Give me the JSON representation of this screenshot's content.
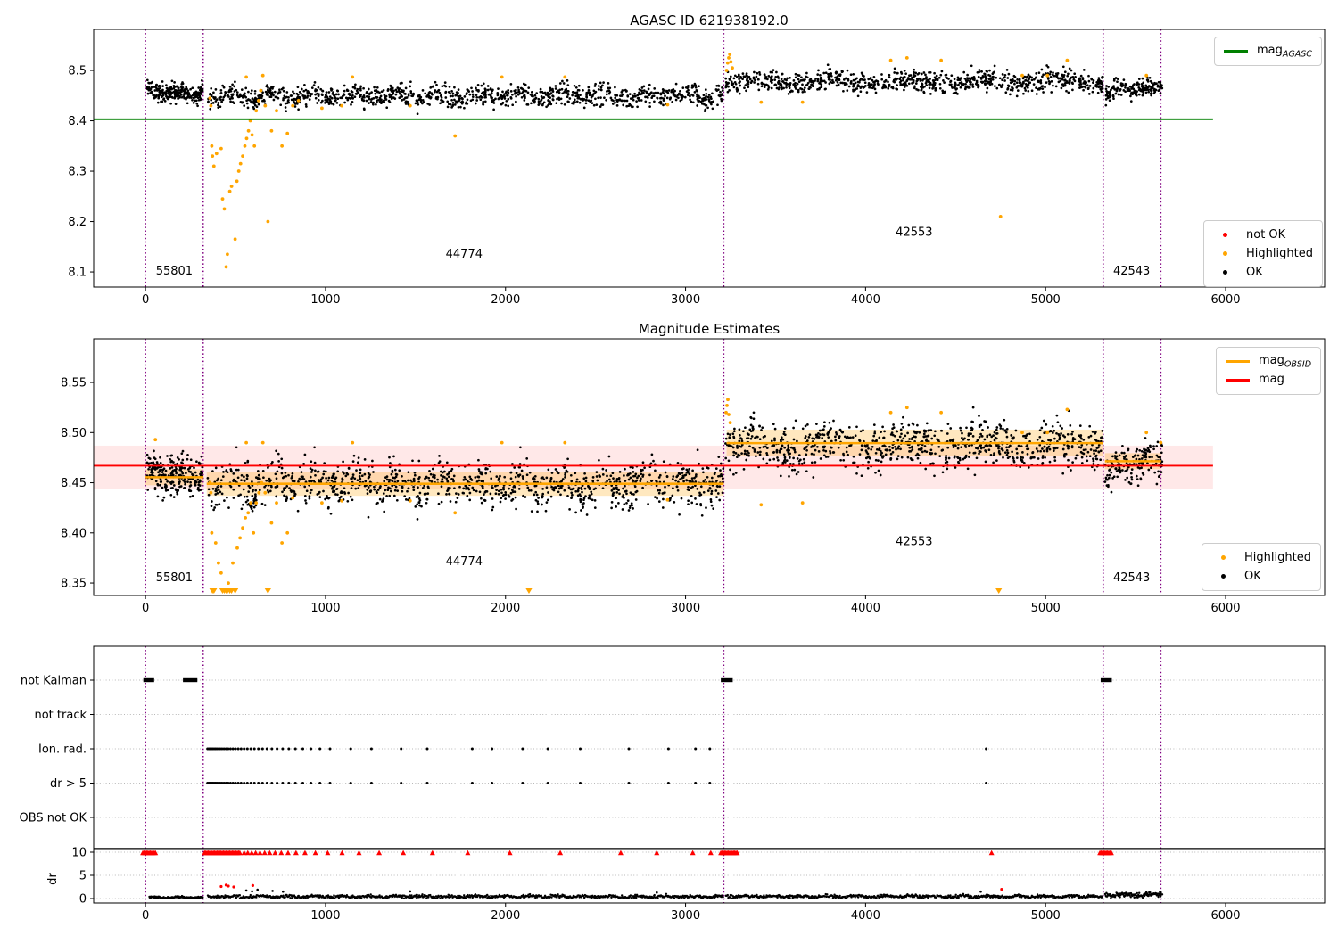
{
  "figure_titles": {
    "top": "AGASC ID 621938192.0",
    "middle": "Magnitude Estimates"
  },
  "colors": {
    "ok": "#000000",
    "highlighted": "#ffa500",
    "not_ok": "#ff0000",
    "mag_agasc_line": "#008000",
    "mag_line": "#ff0000",
    "obsid_line": "#ffa500",
    "vline": "#800080",
    "pink_band": "rgba(255,0,0,0.09)",
    "orange_band": "rgba(255,165,0,0.25)",
    "grid": "#b8b8b8",
    "threshold_line": "#000000"
  },
  "legends": {
    "agasc": {
      "items": [
        {
          "type": "line",
          "label": "mag",
          "sub": "AGASC"
        }
      ]
    },
    "flags_top": {
      "items": [
        {
          "type": "dot",
          "label": "not OK"
        },
        {
          "type": "dot",
          "label": "Highlighted"
        },
        {
          "type": "dot",
          "label": "OK"
        }
      ]
    },
    "mid_lines": {
      "items": [
        {
          "type": "line",
          "label": "mag",
          "sub": "OBSID"
        },
        {
          "type": "line",
          "label": "mag",
          "sub": ""
        }
      ]
    },
    "flags_mid": {
      "items": [
        {
          "type": "dot",
          "label": "Highlighted"
        },
        {
          "type": "dot",
          "label": "OK"
        }
      ]
    }
  },
  "chart_data": [
    {
      "name": "agasc-magnitude-panel",
      "type": "scatter",
      "title": "AGASC ID 621938192.0",
      "xlim": [
        -288,
        6550
      ],
      "ylim": [
        8.07,
        8.5815
      ],
      "x_tick_vals": [
        0,
        1000,
        2000,
        3000,
        4000,
        5000,
        6000
      ],
      "x_tick_labels": [
        "0",
        "1000",
        "2000",
        "3000",
        "4000",
        "5000",
        "6000"
      ],
      "y_tick_vals": [
        8.1,
        8.2,
        8.3,
        8.4,
        8.5
      ],
      "y_tick_labels": [
        "8.1",
        "8.2",
        "8.3",
        "8.4",
        "8.5"
      ],
      "agasc_line": {
        "y": 8.403,
        "x0": -288,
        "x1": 5930
      },
      "vlines": [
        0,
        320,
        3212,
        5320,
        5640
      ],
      "ok_segments": [
        {
          "x0": 8,
          "x1": 318,
          "base": 8.4555,
          "trend": -0.008,
          "noise": 0.0085,
          "wave_amp": 0.003,
          "wave_period": 160,
          "n": 240
        },
        {
          "x0": 345,
          "x1": 3210,
          "base": 8.4495,
          "trend": 0,
          "noise": 0.01,
          "wave_amp": 0.0055,
          "wave_period": 230,
          "n": 1150
        },
        {
          "x0": 3222,
          "x1": 5318,
          "base": 8.4775,
          "trend": 0.002,
          "noise": 0.01,
          "wave_amp": 0.005,
          "wave_period": 420,
          "n": 900
        },
        {
          "x0": 5330,
          "x1": 5648,
          "base": 8.4635,
          "trend": 0.012,
          "noise": 0.009,
          "wave_amp": 0.004,
          "wave_period": 150,
          "n": 170
        }
      ],
      "highlighted_points": [
        [
          358,
          8.445
        ],
        [
          363,
          8.43
        ],
        [
          368,
          8.35
        ],
        [
          372,
          8.33
        ],
        [
          380,
          8.31
        ],
        [
          395,
          8.335
        ],
        [
          420,
          8.345
        ],
        [
          428,
          8.245
        ],
        [
          438,
          8.225
        ],
        [
          448,
          8.11
        ],
        [
          455,
          8.135
        ],
        [
          468,
          8.26
        ],
        [
          478,
          8.27
        ],
        [
          498,
          8.165
        ],
        [
          508,
          8.28
        ],
        [
          518,
          8.3
        ],
        [
          528,
          8.315
        ],
        [
          540,
          8.33
        ],
        [
          552,
          8.35
        ],
        [
          562,
          8.365
        ],
        [
          572,
          8.38
        ],
        [
          582,
          8.4
        ],
        [
          592,
          8.372
        ],
        [
          605,
          8.35
        ],
        [
          615,
          8.42
        ],
        [
          628,
          8.44
        ],
        [
          640,
          8.46
        ],
        [
          652,
          8.49
        ],
        [
          665,
          8.43
        ],
        [
          680,
          8.2
        ],
        [
          700,
          8.38
        ],
        [
          728,
          8.42
        ],
        [
          758,
          8.35
        ],
        [
          788,
          8.375
        ],
        [
          818,
          8.43
        ],
        [
          850,
          8.44
        ],
        [
          560,
          8.487
        ],
        [
          980,
          8.425
        ],
        [
          1090,
          8.43
        ],
        [
          1150,
          8.487
        ],
        [
          1470,
          8.43
        ],
        [
          1720,
          8.37
        ],
        [
          1980,
          8.487
        ],
        [
          2330,
          8.487
        ],
        [
          2900,
          8.432
        ],
        [
          3228,
          8.5
        ],
        [
          3234,
          8.515
        ],
        [
          3240,
          8.525
        ],
        [
          3246,
          8.532
        ],
        [
          3252,
          8.517
        ],
        [
          3260,
          8.505
        ],
        [
          3420,
          8.437
        ],
        [
          3650,
          8.437
        ],
        [
          4140,
          8.52
        ],
        [
          4230,
          8.525
        ],
        [
          4420,
          8.52
        ],
        [
          4750,
          8.21
        ],
        [
          4870,
          8.49
        ],
        [
          5010,
          8.49
        ],
        [
          5120,
          8.52
        ],
        [
          5560,
          8.49
        ]
      ],
      "region_labels": [
        {
          "text": "55801",
          "x": 160,
          "y": 8.095
        },
        {
          "text": "44774",
          "x": 1770,
          "y": 8.128
        },
        {
          "text": "42553",
          "x": 4270,
          "y": 8.172
        },
        {
          "text": "42543",
          "x": 5478,
          "y": 8.095
        }
      ]
    },
    {
      "name": "magnitude-estimates-panel",
      "type": "scatter",
      "title": "Magnitude Estimates",
      "xlim": [
        -288,
        6550
      ],
      "ylim": [
        8.3376,
        8.5936
      ],
      "x_tick_vals": [
        0,
        1000,
        2000,
        3000,
        4000,
        5000,
        6000
      ],
      "x_tick_labels": [
        "0",
        "1000",
        "2000",
        "3000",
        "4000",
        "5000",
        "6000"
      ],
      "y_tick_vals": [
        8.35,
        8.4,
        8.45,
        8.5,
        8.55
      ],
      "y_tick_labels": [
        "8.35",
        "8.40",
        "8.45",
        "8.50",
        "8.55"
      ],
      "mag_line": {
        "y": 8.467,
        "x0": -288,
        "x1": 5930
      },
      "mag_band": {
        "y0": 8.444,
        "y1": 8.487,
        "x0": -288,
        "x1": 5930
      },
      "vlines": [
        0,
        320,
        3212,
        5320,
        5640
      ],
      "obsid_segments": [
        {
          "x0": 0,
          "x1": 322,
          "y": 8.4555,
          "band": [
            8.4475,
            8.4635
          ]
        },
        {
          "x0": 340,
          "x1": 3212,
          "y": 8.449,
          "band": [
            8.437,
            8.461
          ]
        },
        {
          "x0": 3228,
          "x1": 5320,
          "y": 8.4895,
          "band": [
            8.477,
            8.503
          ]
        },
        {
          "x0": 5330,
          "x1": 5642,
          "y": 8.4715,
          "band": [
            8.4635,
            8.4795
          ]
        }
      ],
      "ok_segments": [
        {
          "x0": 8,
          "x1": 318,
          "base": 8.457,
          "trend": -0.008,
          "noise": 0.009,
          "wave_amp": 0.003,
          "wave_period": 160,
          "n": 240
        },
        {
          "x0": 345,
          "x1": 3210,
          "base": 8.4485,
          "trend": 0,
          "noise": 0.011,
          "wave_amp": 0.006,
          "wave_period": 230,
          "n": 1150
        },
        {
          "x0": 3222,
          "x1": 5318,
          "base": 8.4865,
          "trend": 0.002,
          "noise": 0.011,
          "wave_amp": 0.006,
          "wave_period": 420,
          "n": 900
        },
        {
          "x0": 5330,
          "x1": 5648,
          "base": 8.4695,
          "trend": 0.01,
          "noise": 0.009,
          "wave_amp": 0.004,
          "wave_period": 150,
          "n": 170
        }
      ],
      "highlighted_points": [
        [
          55,
          8.493
        ],
        [
          358,
          8.45
        ],
        [
          363,
          8.44
        ],
        [
          368,
          8.4
        ],
        [
          390,
          8.39
        ],
        [
          405,
          8.37
        ],
        [
          420,
          8.36
        ],
        [
          460,
          8.35
        ],
        [
          485,
          8.37
        ],
        [
          510,
          8.385
        ],
        [
          525,
          8.395
        ],
        [
          540,
          8.405
        ],
        [
          555,
          8.415
        ],
        [
          570,
          8.42
        ],
        [
          585,
          8.43
        ],
        [
          600,
          8.4
        ],
        [
          615,
          8.43
        ],
        [
          630,
          8.44
        ],
        [
          645,
          8.45
        ],
        [
          652,
          8.49
        ],
        [
          665,
          8.44
        ],
        [
          700,
          8.41
        ],
        [
          728,
          8.43
        ],
        [
          758,
          8.39
        ],
        [
          788,
          8.4
        ],
        [
          818,
          8.435
        ],
        [
          560,
          8.49
        ],
        [
          980,
          8.43
        ],
        [
          1090,
          8.432
        ],
        [
          1150,
          8.49
        ],
        [
          1470,
          8.432
        ],
        [
          1720,
          8.42
        ],
        [
          1980,
          8.49
        ],
        [
          2330,
          8.49
        ],
        [
          2900,
          8.433
        ],
        [
          3225,
          8.52
        ],
        [
          3230,
          8.527
        ],
        [
          3235,
          8.533
        ],
        [
          3240,
          8.518
        ],
        [
          3248,
          8.51
        ],
        [
          3420,
          8.428
        ],
        [
          3650,
          8.43
        ],
        [
          4140,
          8.52
        ],
        [
          4230,
          8.525
        ],
        [
          4420,
          8.52
        ],
        [
          4870,
          8.5
        ],
        [
          5010,
          8.5
        ],
        [
          5120,
          8.523
        ],
        [
          5560,
          8.5
        ],
        [
          5640,
          8.49
        ]
      ],
      "clipped_low_x": [
        372,
        380,
        428,
        438,
        448,
        455,
        468,
        478,
        498,
        680,
        2130,
        4740
      ],
      "region_labels": [
        {
          "text": "55801",
          "x": 160,
          "y": 8.352
        },
        {
          "text": "44774",
          "x": 1770,
          "y": 8.368
        },
        {
          "text": "42553",
          "x": 4270,
          "y": 8.388
        },
        {
          "text": "42543",
          "x": 5478,
          "y": 8.352
        }
      ]
    },
    {
      "name": "flags-dr-panel",
      "type": "event-rows",
      "xlim": [
        -288,
        6550
      ],
      "x_tick_vals": [
        0,
        1000,
        2000,
        3000,
        4000,
        5000,
        6000
      ],
      "x_tick_labels": [
        "0",
        "1000",
        "2000",
        "3000",
        "4000",
        "5000",
        "6000"
      ],
      "rows": [
        "not Kalman",
        "not track",
        "Ion. rad.",
        "dr > 5",
        "OBS not OK"
      ],
      "dr_axis": {
        "label": "dr",
        "tick_vals": [
          10,
          5,
          0
        ],
        "tick_labels": [
          "10",
          "5",
          "0"
        ],
        "threshold_line": 10.8
      },
      "vlines": [
        0,
        320,
        3212,
        5320,
        5640
      ],
      "not_kalman_ranges": [
        [
          -12,
          48
        ],
        [
          208,
          288
        ],
        [
          3196,
          3262
        ],
        [
          5306,
          5368
        ]
      ],
      "ion_rad_x": [
        345,
        352,
        359,
        366,
        373,
        381,
        389,
        397,
        406,
        415,
        425,
        436,
        447,
        459,
        472,
        486,
        500,
        515,
        531,
        548,
        566,
        585,
        605,
        627,
        650,
        675,
        702,
        731,
        762,
        796,
        833,
        874,
        919,
        969,
        1025,
        1140,
        1255,
        1420,
        1565,
        1815,
        1925,
        2095,
        2235,
        2415,
        2685,
        2905,
        3055,
        3135,
        4670
      ],
      "dr_gt5_x": [
        345,
        352,
        359,
        366,
        373,
        381,
        389,
        397,
        406,
        415,
        425,
        436,
        447,
        459,
        472,
        486,
        500,
        515,
        531,
        548,
        566,
        585,
        605,
        627,
        650,
        675,
        702,
        731,
        762,
        796,
        833,
        874,
        919,
        969,
        1025,
        1140,
        1255,
        1420,
        1565,
        1815,
        1925,
        2095,
        2235,
        2415,
        2685,
        2905,
        3055,
        3135,
        4670
      ],
      "red_clipped_ranges": [
        [
          -15,
          58
        ],
        [
          328,
          525
        ],
        [
          3196,
          3288
        ],
        [
          5302,
          5368
        ]
      ],
      "red_clipped_x": [
        548,
        568,
        590,
        612,
        636,
        662,
        690,
        720,
        754,
        792,
        836,
        886,
        944,
        1012,
        1092,
        1186,
        1298,
        1432,
        1594,
        1790,
        2024,
        2304,
        2640,
        2840,
        3040,
        3140,
        4700
      ],
      "red_points": [
        [
          420,
          2.6
        ],
        [
          448,
          2.9
        ],
        [
          460,
          2.7
        ],
        [
          490,
          2.5
        ],
        [
          596,
          2.8
        ],
        [
          4756,
          2.0
        ]
      ],
      "dr_trace_segments": [
        {
          "x0": 20,
          "x1": 318,
          "mean": 0.22,
          "noise": 0.1,
          "n": 150
        },
        {
          "x0": 345,
          "x1": 3210,
          "mean": 0.42,
          "noise": 0.17,
          "n": 800
        },
        {
          "x0": 3222,
          "x1": 5318,
          "mean": 0.45,
          "noise": 0.17,
          "n": 620
        },
        {
          "x0": 5330,
          "x1": 5648,
          "mean": 0.8,
          "noise": 0.28,
          "n": 120
        }
      ],
      "dr_outliers": [
        [
          560,
          1.75
        ],
        [
          592,
          1.55
        ],
        [
          622,
          1.9
        ],
        [
          706,
          1.65
        ],
        [
          764,
          1.5
        ],
        [
          1470,
          1.55
        ],
        [
          2840,
          1.3
        ],
        [
          4640,
          1.5
        ],
        [
          5560,
          1.35
        ],
        [
          5640,
          1.3
        ]
      ]
    }
  ]
}
